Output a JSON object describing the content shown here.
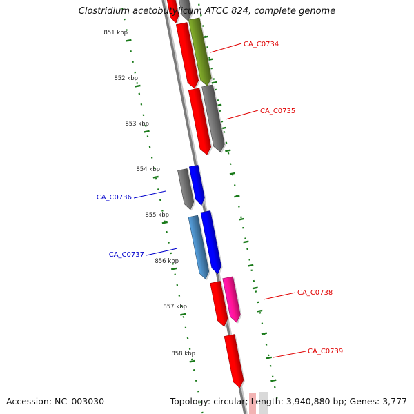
{
  "title": "Clostridium acetobutylicum ATCC 824, complete genome",
  "footer": {
    "accession": "Accession: NC_003030",
    "topology": "Topology: circular",
    "length": "Length: 3,940,880 bp",
    "genes": "Genes: 3,777"
  },
  "ticks": [
    "851 kbp",
    "852 kbp",
    "853 kbp",
    "854 kbp",
    "855 kbp",
    "856 kbp",
    "857 kbp",
    "858 kbp"
  ],
  "colors": {
    "red": "#ff0000",
    "olive": "#6b8e23",
    "gray": "#707070",
    "blue": "#0000ff",
    "steelblue": "#4682b4",
    "magenta": "#ff1493",
    "ruler_green": "#1a7a1a",
    "label_red": "#e00000",
    "label_blue": "#0000cc"
  },
  "genes": [
    {
      "label": "",
      "color": "red",
      "strand": "forward"
    },
    {
      "label": "",
      "color": "gray",
      "strand": "forward"
    },
    {
      "label": "",
      "color": "red",
      "strand": "forward"
    },
    {
      "label": "CA_C0734",
      "color": "olive",
      "strand": "forward"
    },
    {
      "label": "",
      "color": "red",
      "strand": "forward"
    },
    {
      "label": "CA_C0735",
      "color": "gray",
      "strand": "forward"
    },
    {
      "label": "",
      "color": "gray",
      "strand": "forward"
    },
    {
      "label": "CA_C0736",
      "color": "blue",
      "strand": "forward"
    },
    {
      "label": "",
      "color": "steelblue",
      "strand": "forward"
    },
    {
      "label": "CA_C0737",
      "color": "blue",
      "strand": "forward"
    },
    {
      "label": "",
      "color": "red",
      "strand": "forward"
    },
    {
      "label": "CA_C0738",
      "color": "magenta",
      "strand": "forward"
    },
    {
      "label": "CA_C0739",
      "color": "red",
      "strand": "forward"
    }
  ]
}
